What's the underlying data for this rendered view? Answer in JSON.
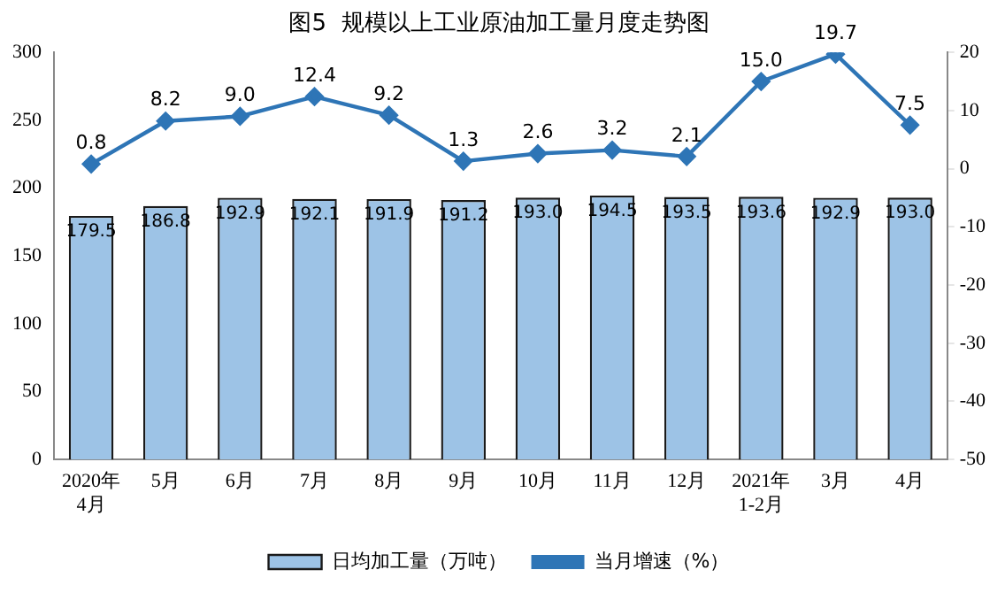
{
  "chart_data": {
    "type": "bar",
    "title": "图5  规模以上工业原油加工量月度走势图",
    "categories": [
      "2020年\n4月",
      "5月",
      "6月",
      "7月",
      "8月",
      "9月",
      "10月",
      "11月",
      "12月",
      "2021年\n1-2月",
      "3月",
      "4月"
    ],
    "series": [
      {
        "name": "日均加工量（万吨）",
        "color": "#9dc3e6",
        "values": [
          179.5,
          186.8,
          192.9,
          192.1,
          191.9,
          191.2,
          193.0,
          194.5,
          193.5,
          193.6,
          192.9,
          193.0
        ],
        "value_labels": [
          "179.5",
          "186.8",
          "192.9",
          "192.1",
          "191.9",
          "191.2",
          "193.0",
          "194.5",
          "193.5",
          "193.6",
          "192.9",
          "193.0"
        ]
      },
      {
        "name": "当月增速（%）",
        "type": "line",
        "axis": "y2",
        "color": "#2e75b6",
        "values": [
          0.8,
          8.2,
          9.0,
          12.4,
          9.2,
          1.3,
          2.6,
          3.2,
          2.1,
          15.0,
          19.7,
          7.5
        ],
        "value_labels": [
          "0.8",
          "8.2",
          "9.0",
          "12.4",
          "9.2",
          "1.3",
          "2.6",
          "3.2",
          "2.1",
          "15.0",
          "19.7",
          "7.5"
        ]
      }
    ],
    "ylim": [
      0,
      300
    ],
    "yticks": [
      0,
      50,
      100,
      150,
      200,
      250,
      300
    ],
    "y2lim": [
      -50,
      20
    ],
    "y2ticks": [
      -50,
      -40,
      -30,
      -20,
      -10,
      0,
      10,
      20
    ],
    "grid": false,
    "legend": "bottom",
    "marker": "diamond",
    "line_style": "solid"
  }
}
